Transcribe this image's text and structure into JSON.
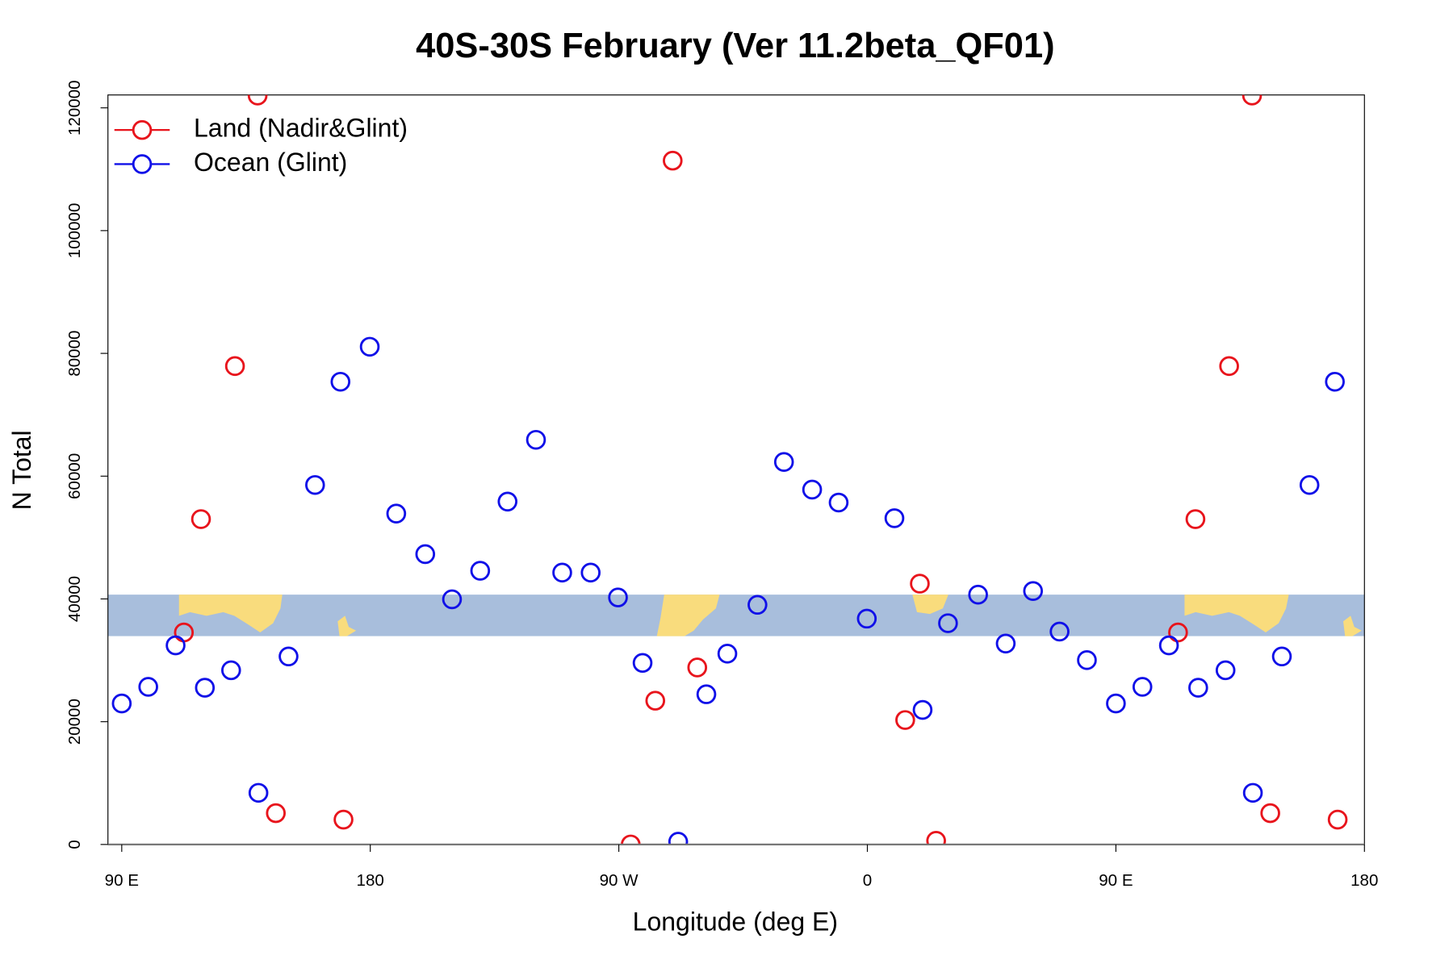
{
  "chart_data": {
    "type": "scatter",
    "title": "40S-30S February (Ver 11.2beta_QF01)",
    "x_label": "Longitude (deg E)",
    "y_label": "N Total",
    "xlim": [
      85,
      540
    ],
    "xticks": [
      {
        "value": 90,
        "label": "90 E"
      },
      {
        "value": 180,
        "label": "180"
      },
      {
        "value": 270,
        "label": "90 W"
      },
      {
        "value": 360,
        "label": "0"
      },
      {
        "value": 450,
        "label": "90 E"
      },
      {
        "value": 540,
        "label": "180"
      }
    ],
    "ylim": [
      0,
      122100
    ],
    "yticks": [
      0,
      20000,
      40000,
      60000,
      80000,
      100000,
      120000
    ],
    "legend": "topleft",
    "series": [
      {
        "name": "Land (Nadir&Glint)",
        "color": "#e8141c",
        "x": [
          112.5,
          118.7,
          131.0,
          139.2,
          145.8,
          170.3,
          274.3,
          283.2,
          289.5,
          298.4,
          373.7,
          379.0,
          384.9,
          472.5,
          478.8,
          491.0,
          499.3,
          505.9,
          530.3
        ],
        "values": [
          34530,
          53000,
          77930,
          122000,
          5100,
          4050,
          0,
          23420,
          111400,
          28830,
          20270,
          42490,
          600,
          34530,
          53000,
          77930,
          122000,
          5100,
          4050
        ]
      },
      {
        "name": "Ocean (Glint)",
        "color": "#1010e8",
        "x": [
          90.0,
          99.6,
          109.5,
          120.1,
          129.6,
          139.5,
          150.4,
          160.0,
          169.2,
          179.8,
          189.4,
          199.9,
          209.6,
          219.8,
          229.7,
          240.0,
          249.5,
          259.8,
          269.7,
          278.6,
          291.5,
          301.7,
          309.3,
          320.2,
          329.8,
          340.0,
          349.6,
          359.8,
          369.8,
          380.0,
          389.2,
          400.1,
          410.1,
          420.0,
          429.6,
          439.5,
          450.0,
          459.6,
          469.2,
          479.8,
          489.7,
          499.6,
          510.1,
          520.1,
          529.3
        ],
        "values": [
          22970,
          25680,
          32430,
          25530,
          28380,
          8410,
          30630,
          58560,
          75380,
          81080,
          53900,
          47300,
          39940,
          44590,
          55860,
          65920,
          44290,
          44290,
          40240,
          29580,
          450,
          24470,
          31080,
          39040,
          62310,
          57810,
          55700,
          36790,
          53150,
          21920,
          36040,
          40690,
          32730,
          41290,
          34680,
          30030,
          22970,
          25680,
          32430,
          25530,
          28380,
          8410,
          30630,
          58560,
          75380
        ]
      }
    ]
  }
}
